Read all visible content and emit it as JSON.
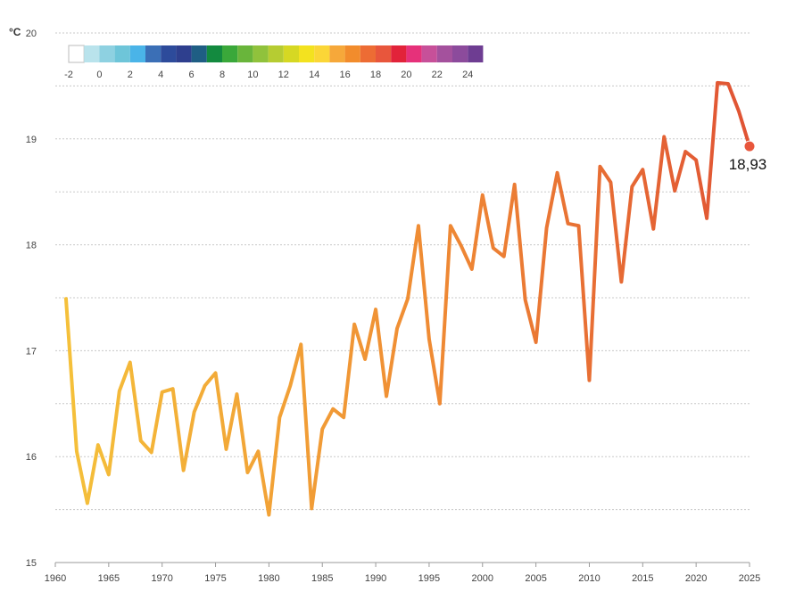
{
  "chart_data": {
    "type": "line",
    "ylabel": "°C",
    "xlim": [
      1960,
      2025
    ],
    "ylim": [
      15,
      20
    ],
    "x_ticks": [
      "1960",
      "1965",
      "1970",
      "1975",
      "1980",
      "1985",
      "1990",
      "1995",
      "2000",
      "2005",
      "2010",
      "2015",
      "2020",
      "2025"
    ],
    "y_ticks": [
      "15",
      "16",
      "17",
      "18",
      "19",
      "20"
    ],
    "grid": "horizontal dashed",
    "series": [
      {
        "x": [
          1961,
          1962,
          1963,
          1964,
          1965,
          1966,
          1967,
          1968,
          1969,
          1970,
          1971,
          1972,
          1973,
          1974,
          1975,
          1976,
          1977,
          1978,
          1979,
          1980,
          1981,
          1982,
          1983,
          1984,
          1985,
          1986,
          1987,
          1988,
          1989,
          1990,
          1991,
          1992,
          1993,
          1994,
          1995,
          1996,
          1997,
          1998,
          1999,
          2000,
          2001,
          2002,
          2003,
          2004,
          2005,
          2006,
          2007,
          2008,
          2009,
          2010,
          2011,
          2012,
          2013,
          2014,
          2015,
          2016,
          2017,
          2018,
          2019,
          2020,
          2021,
          2022,
          2023,
          2024,
          2025
        ],
        "values": [
          17.49,
          16.05,
          15.56,
          16.11,
          15.83,
          16.62,
          16.89,
          16.15,
          16.04,
          16.61,
          16.64,
          15.87,
          16.42,
          16.67,
          16.79,
          16.07,
          16.59,
          15.85,
          16.05,
          15.45,
          16.37,
          16.67,
          17.06,
          15.51,
          16.26,
          16.45,
          16.37,
          17.25,
          16.92,
          17.39,
          16.57,
          17.21,
          17.49,
          18.18,
          17.11,
          16.5,
          18.18,
          17.99,
          17.77,
          18.47,
          17.97,
          17.89,
          18.57,
          17.48,
          17.08,
          18.16,
          18.68,
          18.2,
          18.18,
          16.72,
          18.74,
          18.59,
          17.65,
          18.55,
          18.71,
          18.15,
          19.02,
          18.51,
          18.88,
          18.8,
          18.25,
          19.53,
          19.52,
          19.26,
          18.93
        ]
      }
    ],
    "last_value_label": "18,93",
    "color_scale": {
      "labels": [
        "-2",
        "0",
        "2",
        "4",
        "6",
        "8",
        "10",
        "12",
        "14",
        "16",
        "18",
        "20",
        "22",
        "24"
      ],
      "colors": [
        "#ffffff",
        "#b9e3ec",
        "#8ed1e1",
        "#6ec5d9",
        "#4ab4e8",
        "#3b6fb6",
        "#2d4b9b",
        "#2e3f8e",
        "#1f5e84",
        "#138a3f",
        "#3aa83a",
        "#69b53b",
        "#90c23c",
        "#b6cc32",
        "#d6d823",
        "#f3e21f",
        "#fbd637",
        "#f6a83a",
        "#f28c2c",
        "#ed6c34",
        "#e8563c",
        "#e2233a",
        "#e6317a",
        "#c75099",
        "#a4519d",
        "#8c4b9c",
        "#6e3d92"
      ]
    },
    "line_colors": {
      "start": "#f5c23a",
      "mid": "#ef8a34",
      "end": "#e05334"
    }
  }
}
